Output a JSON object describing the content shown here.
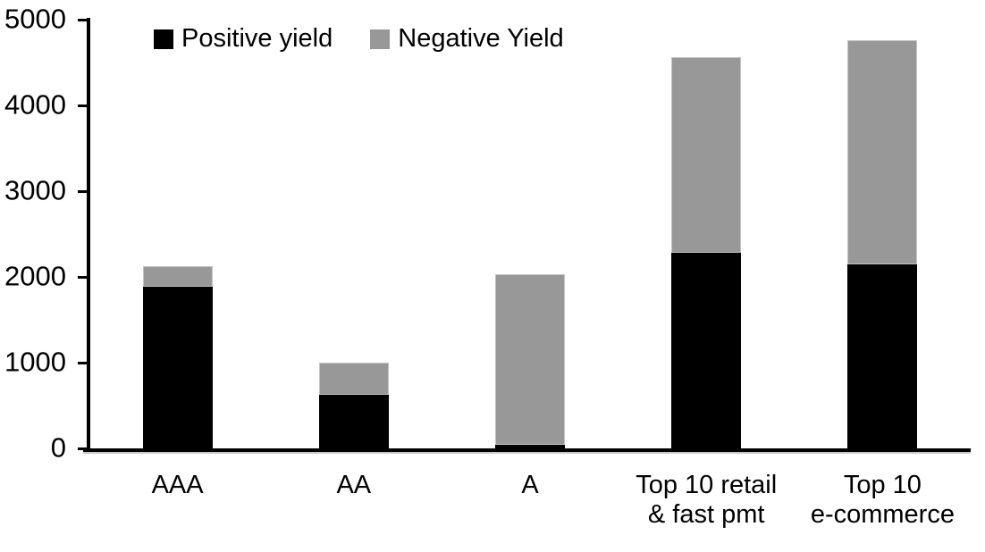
{
  "chart_data": {
    "type": "bar",
    "stacked": true,
    "title": "",
    "xlabel": "",
    "ylabel": "",
    "categories": [
      [
        "AAA"
      ],
      [
        "AA"
      ],
      [
        "A"
      ],
      [
        "Top 10 retail",
        "& fast pmt"
      ],
      [
        "Top 10",
        "e-commerce"
      ]
    ],
    "series": [
      {
        "name": "Positive yield",
        "color": "#000000",
        "edge": "none",
        "values": [
          1890,
          620,
          40,
          2280,
          2145
        ]
      },
      {
        "name": "Negative Yield",
        "color": "#989898",
        "edge": "#c4c4c4",
        "values": [
          230,
          380,
          1990,
          2280,
          2615
        ]
      }
    ],
    "totals": [
      2120,
      1000,
      2030,
      4560,
      4760
    ],
    "ylim": [
      0,
      5000
    ],
    "yticks": [
      0,
      1000,
      2000,
      3000,
      4000,
      5000
    ],
    "grid": false,
    "legend_position": "top-left-inside"
  }
}
